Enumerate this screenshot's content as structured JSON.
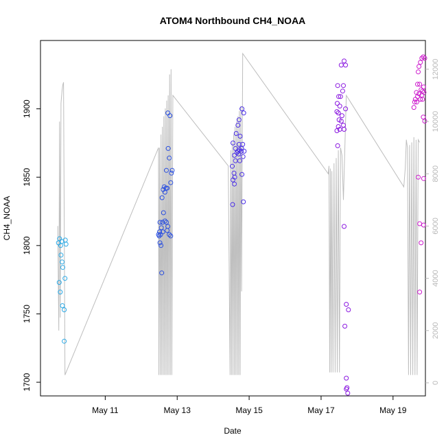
{
  "chart_data": {
    "type": "scatter",
    "title": "ATOM4 Northbound CH4_NOAA",
    "xlabel": "Date",
    "ylabel": "CH4_NOAA",
    "x_range_days": [
      9.2,
      19.9
    ],
    "ylim": [
      1690,
      1950
    ],
    "x_ticks": [
      {
        "value": 11,
        "label": "May 11"
      },
      {
        "value": 13,
        "label": "May 13"
      },
      {
        "value": 15,
        "label": "May 15"
      },
      {
        "value": 17,
        "label": "May 17"
      },
      {
        "value": 19,
        "label": "May 19"
      }
    ],
    "y_ticks": [
      1700,
      1750,
      1800,
      1850,
      1900
    ],
    "y2_ticks": [
      0,
      2000,
      4000,
      6000,
      8000,
      10000,
      12000
    ],
    "y2lim": [
      -500,
      13100
    ],
    "grid": false,
    "series": [
      {
        "color": "#29a9e6",
        "points": [
          [
            9.73,
            1805
          ],
          [
            9.7,
            1802
          ],
          [
            9.76,
            1800
          ],
          [
            9.79,
            1803
          ],
          [
            9.89,
            1804
          ],
          [
            9.91,
            1801
          ],
          [
            9.77,
            1793
          ],
          [
            9.8,
            1788
          ],
          [
            9.82,
            1784
          ],
          [
            9.88,
            1776
          ],
          [
            9.72,
            1773
          ],
          [
            9.75,
            1766
          ],
          [
            9.81,
            1756
          ],
          [
            9.86,
            1753
          ],
          [
            9.86,
            1730
          ]
        ]
      },
      {
        "color": "#2a4fe0",
        "points": [
          [
            12.74,
            1897
          ],
          [
            12.8,
            1895
          ],
          [
            12.75,
            1871
          ],
          [
            12.78,
            1864
          ],
          [
            12.7,
            1855
          ],
          [
            12.86,
            1855
          ],
          [
            12.84,
            1853
          ],
          [
            12.82,
            1846
          ],
          [
            12.64,
            1843
          ],
          [
            12.69,
            1842
          ],
          [
            12.72,
            1842
          ],
          [
            12.61,
            1841
          ],
          [
            12.66,
            1839
          ],
          [
            12.58,
            1835
          ],
          [
            12.62,
            1824
          ],
          [
            12.52,
            1817
          ],
          [
            12.59,
            1817
          ],
          [
            12.66,
            1818
          ],
          [
            12.7,
            1817
          ],
          [
            12.56,
            1813
          ],
          [
            12.74,
            1814
          ],
          [
            12.51,
            1810
          ],
          [
            12.54,
            1808
          ],
          [
            12.48,
            1808
          ],
          [
            12.5,
            1807
          ],
          [
            12.6,
            1810
          ],
          [
            12.72,
            1811
          ],
          [
            12.78,
            1808
          ],
          [
            12.82,
            1807
          ],
          [
            12.52,
            1802
          ],
          [
            12.55,
            1800
          ],
          [
            12.57,
            1780
          ]
        ]
      },
      {
        "color": "#4a2fe6",
        "points": [
          [
            14.8,
            1900
          ],
          [
            14.85,
            1897
          ],
          [
            14.72,
            1892
          ],
          [
            14.69,
            1888
          ],
          [
            14.64,
            1882
          ],
          [
            14.75,
            1880
          ],
          [
            14.55,
            1875
          ],
          [
            14.72,
            1874
          ],
          [
            14.82,
            1874
          ],
          [
            14.62,
            1871
          ],
          [
            14.69,
            1869
          ],
          [
            14.73,
            1870
          ],
          [
            14.78,
            1869
          ],
          [
            14.86,
            1869
          ],
          [
            14.79,
            1871
          ],
          [
            14.66,
            1868
          ],
          [
            14.71,
            1867
          ],
          [
            14.83,
            1865
          ],
          [
            14.59,
            1866
          ],
          [
            14.62,
            1862
          ],
          [
            14.74,
            1862
          ],
          [
            14.53,
            1858
          ],
          [
            14.58,
            1853
          ],
          [
            14.6,
            1850
          ],
          [
            14.55,
            1848
          ],
          [
            14.8,
            1852
          ],
          [
            14.59,
            1845
          ],
          [
            14.84,
            1832
          ],
          [
            14.54,
            1830
          ]
        ]
      },
      {
        "color": "#8a18e0",
        "points": [
          [
            17.64,
            1935
          ],
          [
            17.56,
            1932
          ],
          [
            17.68,
            1932
          ],
          [
            17.46,
            1917
          ],
          [
            17.62,
            1917
          ],
          [
            17.6,
            1913
          ],
          [
            17.49,
            1909
          ],
          [
            17.54,
            1909
          ],
          [
            17.45,
            1904
          ],
          [
            17.52,
            1902
          ],
          [
            17.68,
            1900
          ],
          [
            17.44,
            1898
          ],
          [
            17.48,
            1897
          ],
          [
            17.58,
            1895
          ],
          [
            17.5,
            1892
          ],
          [
            17.56,
            1891
          ],
          [
            17.62,
            1888
          ],
          [
            17.48,
            1887
          ],
          [
            17.52,
            1885
          ],
          [
            17.64,
            1885
          ],
          [
            17.44,
            1884
          ],
          [
            17.46,
            1873
          ],
          [
            17.64,
            1814
          ],
          [
            17.7,
            1757
          ],
          [
            17.76,
            1753
          ],
          [
            17.66,
            1741
          ],
          [
            17.7,
            1703
          ],
          [
            17.72,
            1696
          ],
          [
            17.7,
            1695
          ],
          [
            17.74,
            1692
          ]
        ]
      },
      {
        "color": "#cc19cc",
        "points": [
          [
            19.84,
            1938
          ],
          [
            19.8,
            1937
          ],
          [
            19.88,
            1937
          ],
          [
            19.76,
            1934
          ],
          [
            19.72,
            1931
          ],
          [
            19.7,
            1927
          ],
          [
            19.68,
            1918
          ],
          [
            19.74,
            1918
          ],
          [
            19.85,
            1916
          ],
          [
            19.78,
            1914
          ],
          [
            19.82,
            1913
          ],
          [
            19.65,
            1912
          ],
          [
            19.72,
            1911
          ],
          [
            19.8,
            1910
          ],
          [
            19.86,
            1912
          ],
          [
            19.68,
            1909
          ],
          [
            19.76,
            1907
          ],
          [
            19.82,
            1907
          ],
          [
            19.62,
            1907
          ],
          [
            19.6,
            1905
          ],
          [
            19.66,
            1905
          ],
          [
            19.58,
            1901
          ],
          [
            19.84,
            1894
          ],
          [
            19.88,
            1891
          ],
          [
            19.7,
            1850
          ],
          [
            19.85,
            1849
          ],
          [
            19.74,
            1816
          ],
          [
            19.85,
            1815
          ],
          [
            19.78,
            1802
          ],
          [
            19.74,
            1766
          ]
        ]
      }
    ],
    "altitude_series": {
      "color": "#bdbdbd",
      "points": [
        [
          9.68,
          6000
        ],
        [
          9.71,
          2000
        ],
        [
          9.73,
          10000
        ],
        [
          9.75,
          2500
        ],
        [
          9.77,
          10700
        ],
        [
          9.8,
          11200
        ],
        [
          9.82,
          11400
        ],
        [
          9.84,
          11500
        ],
        [
          9.88,
          300
        ],
        [
          12.48,
          9000
        ],
        [
          12.49,
          300
        ],
        [
          12.51,
          9000
        ],
        [
          12.53,
          300
        ],
        [
          12.55,
          9500
        ],
        [
          12.57,
          300
        ],
        [
          12.59,
          9800
        ],
        [
          12.61,
          300
        ],
        [
          12.63,
          10200
        ],
        [
          12.65,
          300
        ],
        [
          12.67,
          10500
        ],
        [
          12.69,
          300
        ],
        [
          12.71,
          10800
        ],
        [
          12.73,
          300
        ],
        [
          12.75,
          11000
        ],
        [
          12.77,
          300
        ],
        [
          12.79,
          11800
        ],
        [
          12.81,
          300
        ],
        [
          12.83,
          12000
        ],
        [
          12.85,
          300
        ],
        [
          12.88,
          11000
        ],
        [
          14.42,
          8300
        ],
        [
          14.47,
          300
        ],
        [
          14.49,
          8900
        ],
        [
          14.51,
          300
        ],
        [
          14.53,
          9200
        ],
        [
          14.55,
          300
        ],
        [
          14.57,
          9500
        ],
        [
          14.59,
          300
        ],
        [
          14.61,
          9800
        ],
        [
          14.63,
          300
        ],
        [
          14.65,
          10000
        ],
        [
          14.67,
          300
        ],
        [
          14.69,
          10200
        ],
        [
          14.71,
          300
        ],
        [
          14.73,
          10400
        ],
        [
          14.75,
          300
        ],
        [
          14.77,
          10600
        ],
        [
          14.79,
          3500
        ],
        [
          14.82,
          12600
        ],
        [
          17.2,
          8000
        ],
        [
          17.22,
          8300
        ],
        [
          17.24,
          400
        ],
        [
          17.26,
          8200
        ],
        [
          17.28,
          400
        ],
        [
          17.3,
          8100
        ],
        [
          17.33,
          400
        ],
        [
          17.36,
          8400
        ],
        [
          17.39,
          400
        ],
        [
          17.42,
          8600
        ],
        [
          17.45,
          400
        ],
        [
          17.48,
          8900
        ],
        [
          17.51,
          400
        ],
        [
          17.54,
          9000
        ],
        [
          17.58,
          8700
        ],
        [
          17.62,
          7000
        ],
        [
          17.7,
          11000
        ],
        [
          19.3,
          7500
        ],
        [
          19.34,
          8200
        ],
        [
          19.37,
          9300
        ],
        [
          19.4,
          9000
        ],
        [
          19.43,
          300
        ],
        [
          19.46,
          9100
        ],
        [
          19.49,
          300
        ],
        [
          19.52,
          9200
        ],
        [
          19.55,
          300
        ],
        [
          19.58,
          9400
        ],
        [
          19.61,
          300
        ],
        [
          19.64,
          9300
        ],
        [
          19.67,
          300
        ],
        [
          19.7,
          9300
        ],
        [
          19.74,
          9200
        ]
      ]
    }
  }
}
